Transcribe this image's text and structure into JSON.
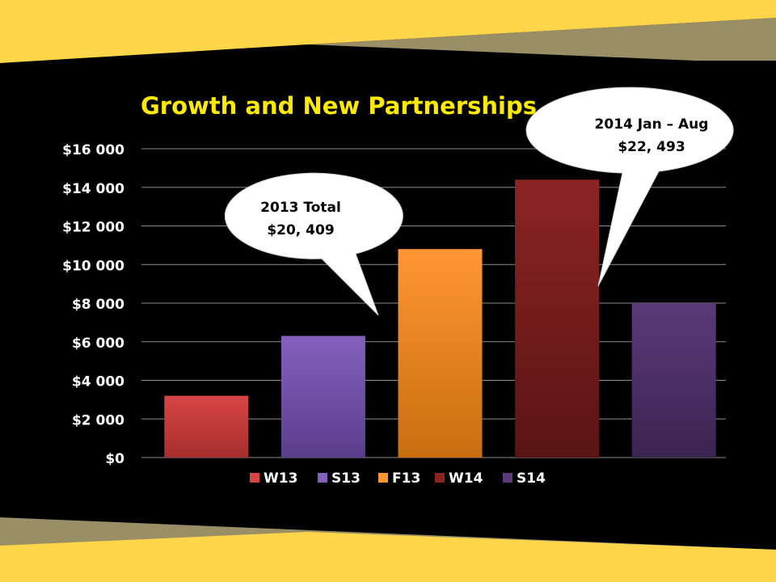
{
  "colors": {
    "background": "#000000",
    "gold": "#FFD54A",
    "gold_dark": "#F7C52E",
    "khaki": "#9A8E66",
    "title": "#FFEA00",
    "text": "#FFFFFF",
    "grid": "#8C8C8C"
  },
  "chart_data": {
    "type": "bar",
    "title": "Growth and New Partnerships",
    "categories": [
      "W13",
      "S13",
      "F13",
      "W14",
      "S14"
    ],
    "values": [
      3200,
      6300,
      10800,
      14400,
      8000
    ],
    "series_colors": [
      [
        "#D84545",
        "#A62E2E"
      ],
      [
        "#8361BD",
        "#5A3E8C"
      ],
      [
        "#FF9633",
        "#C96E10"
      ],
      [
        "#8C2424",
        "#5A1414"
      ],
      [
        "#5A3A78",
        "#3A2452"
      ]
    ],
    "legend": [
      "W13",
      "S13",
      "F13",
      "W14",
      "S14"
    ],
    "legend_position": "bottom",
    "ylim": [
      0,
      16000
    ],
    "yticks": [
      0,
      2000,
      4000,
      6000,
      8000,
      10000,
      12000,
      14000,
      16000
    ],
    "ytick_labels": [
      "$0",
      "$2 000",
      "$4 000",
      "$6 000",
      "$8 000",
      "$10 000",
      "$12 000",
      "$14 000",
      "$16 000"
    ],
    "grid": true,
    "xlabel": "",
    "ylabel": "",
    "annotations": [
      {
        "line1": "2013 Total",
        "line2": "$20, 409"
      },
      {
        "line1": "2014 Jan – Aug",
        "line2": "$22, 493"
      }
    ]
  }
}
